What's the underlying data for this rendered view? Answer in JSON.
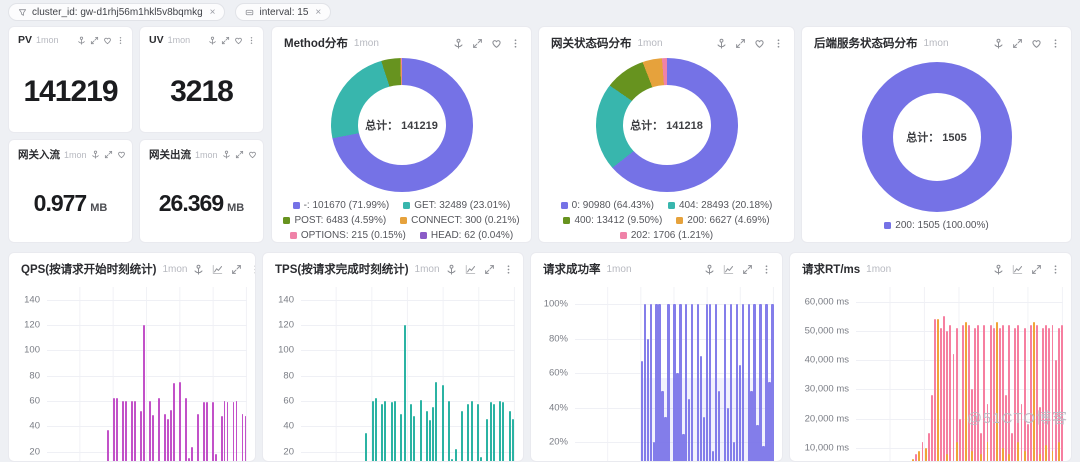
{
  "filters": {
    "cluster_chip": {
      "icon": "filter-icon",
      "label": "cluster_id: gw-d1rhj56m1hkl5v8bqmkg",
      "close": "×"
    },
    "interval_chip": {
      "icon": "field-icon",
      "label": "interval: 15",
      "close": "×"
    }
  },
  "panels": {
    "pv": {
      "title": "PV",
      "range": "1mon",
      "value": "141219",
      "icons": [
        "pin-icon",
        "expand-icon",
        "health-icon",
        "more-icon"
      ]
    },
    "uv": {
      "title": "UV",
      "range": "1mon",
      "value": "3218",
      "icons": [
        "pin-icon",
        "expand-icon",
        "health-icon",
        "more-icon"
      ]
    },
    "inflow": {
      "title": "网关入流",
      "range": "1mon",
      "value": "0.977",
      "unit": "MB",
      "icons": [
        "pin-icon",
        "expand-icon",
        "health-icon",
        "more-icon"
      ]
    },
    "outflow": {
      "title": "网关出流",
      "range": "1mon",
      "value": "26.369",
      "unit": "MB",
      "icons": [
        "pin-icon",
        "expand-icon",
        "health-icon",
        "more-icon"
      ]
    },
    "method": {
      "title": "Method分布",
      "range": "1mon",
      "icons": [
        "pin-icon",
        "expand-icon",
        "health-icon",
        "more-icon"
      ]
    },
    "gw_status": {
      "title": "网关状态码分布",
      "range": "1mon",
      "icons": [
        "pin-icon",
        "expand-icon",
        "health-icon",
        "more-icon"
      ]
    },
    "backend_status": {
      "title": "后端服务状态码分布",
      "range": "1mon",
      "icons": [
        "pin-icon",
        "expand-icon",
        "health-icon",
        "more-icon"
      ]
    },
    "qps": {
      "title": "QPS(按请求开始时刻统计)",
      "range": "1mon",
      "icons": [
        "pin-icon",
        "chart-line-icon",
        "expand-icon",
        "more-icon"
      ]
    },
    "tps": {
      "title": "TPS(按请求完成时刻统计)",
      "range": "1mon",
      "icons": [
        "pin-icon",
        "chart-line-icon",
        "expand-icon",
        "more-icon"
      ]
    },
    "success": {
      "title": "请求成功率",
      "range": "1mon",
      "icons": [
        "pin-icon",
        "chart-line-icon",
        "expand-icon",
        "more-icon"
      ]
    },
    "rt": {
      "title": "请求RT/ms",
      "range": "1mon",
      "icons": [
        "pin-icon",
        "chart-line-icon",
        "expand-icon",
        "more-icon"
      ]
    }
  },
  "watermark": "@51CTO博客",
  "chart_data": [
    {
      "id": "method",
      "type": "pie",
      "title": "Method分布",
      "center": "总计： 141219",
      "total": 141219,
      "slices": [
        {
          "label": "-",
          "value": 101670,
          "pct": "71.99%",
          "color": "#7572e6"
        },
        {
          "label": "GET",
          "value": 32489,
          "pct": "23.01%",
          "color": "#38b6ad"
        },
        {
          "label": "POST",
          "value": 6483,
          "pct": "4.59%",
          "color": "#67931f"
        },
        {
          "label": "CONNECT",
          "value": 300,
          "pct": "0.21%",
          "color": "#e6a23c"
        },
        {
          "label": "OPTIONS",
          "value": 215,
          "pct": "0.15%",
          "color": "#ef82a8"
        },
        {
          "label": "HEAD",
          "value": 62,
          "pct": "0.04%",
          "color": "#8a5bc7"
        }
      ]
    },
    {
      "id": "gw_status",
      "type": "pie",
      "title": "网关状态码分布",
      "center": "总计： 141218",
      "total": 141218,
      "slices": [
        {
          "label": "0",
          "value": 90980,
          "pct": "64.43%",
          "color": "#7572e6"
        },
        {
          "label": "404",
          "value": 28493,
          "pct": "20.18%",
          "color": "#38b6ad"
        },
        {
          "label": "400",
          "value": 13412,
          "pct": "9.50%",
          "color": "#67931f"
        },
        {
          "label": "200",
          "value": 6627,
          "pct": "4.69%",
          "color": "#e6a23c"
        },
        {
          "label": "202",
          "value": 1706,
          "pct": "1.21%",
          "color": "#ef82a8"
        }
      ]
    },
    {
      "id": "backend_status",
      "type": "pie",
      "title": "后端服务状态码分布",
      "center": "总计： 1505",
      "total": 1505,
      "slices": [
        {
          "label": "200",
          "value": 1505,
          "pct": "100.00%",
          "color": "#7572e6"
        }
      ]
    },
    {
      "id": "qps",
      "type": "bar",
      "title": "QPS(按请求开始时刻统计)",
      "color": "#c251c8",
      "ylim": [
        0,
        150
      ],
      "yticks": [
        {
          "v": 140,
          "label": "140"
        },
        {
          "v": 120,
          "label": "120"
        },
        {
          "v": 100,
          "label": "100"
        },
        {
          "v": 80,
          "label": "80"
        },
        {
          "v": 60,
          "label": "60"
        },
        {
          "v": 40,
          "label": "40"
        },
        {
          "v": 20,
          "label": "20"
        }
      ],
      "values": [
        0,
        0,
        0,
        0,
        0,
        0,
        0,
        0,
        0,
        0,
        0,
        0,
        0,
        0,
        0,
        0,
        0,
        0,
        0,
        0,
        37,
        0,
        62,
        62,
        0,
        60,
        60,
        10,
        60,
        60,
        8,
        52,
        120,
        0,
        60,
        49,
        10,
        62,
        0,
        50,
        46,
        53,
        74,
        0,
        75,
        12,
        62,
        15,
        24,
        12,
        50,
        2,
        59,
        59,
        4,
        59,
        18,
        8,
        48,
        60,
        59,
        2,
        59,
        60,
        13,
        50,
        48
      ]
    },
    {
      "id": "tps",
      "type": "bar",
      "title": "TPS(按请求完成时刻统计)",
      "color": "#2bb3a3",
      "ylim": [
        0,
        150
      ],
      "yticks": [
        {
          "v": 140,
          "label": "140"
        },
        {
          "v": 120,
          "label": "120"
        },
        {
          "v": 100,
          "label": "100"
        },
        {
          "v": 80,
          "label": "80"
        },
        {
          "v": 60,
          "label": "60"
        },
        {
          "v": 40,
          "label": "40"
        },
        {
          "v": 20,
          "label": "20"
        }
      ],
      "values": [
        0,
        0,
        0,
        0,
        0,
        0,
        0,
        0,
        0,
        0,
        0,
        0,
        0,
        0,
        0,
        0,
        0,
        0,
        0,
        0,
        35,
        0,
        60,
        62,
        0,
        58,
        60,
        12,
        59,
        60,
        10,
        50,
        120,
        0,
        58,
        48,
        12,
        61,
        0,
        52,
        45,
        55,
        75,
        0,
        73,
        10,
        60,
        14,
        22,
        10,
        52,
        3,
        58,
        60,
        5,
        58,
        16,
        9,
        46,
        59,
        58,
        3,
        60,
        59,
        12,
        52,
        46
      ]
    },
    {
      "id": "success",
      "type": "bar",
      "title": "请求成功率",
      "color": "#7a73e8",
      "ylim": [
        0,
        110
      ],
      "yticks": [
        {
          "v": 100,
          "label": "100%"
        },
        {
          "v": 80,
          "label": "80%"
        },
        {
          "v": 60,
          "label": "60%"
        },
        {
          "v": 40,
          "label": "40%"
        },
        {
          "v": 20,
          "label": "20%"
        }
      ],
      "values": [
        null,
        null,
        null,
        null,
        null,
        null,
        null,
        null,
        null,
        null,
        null,
        null,
        null,
        null,
        null,
        null,
        null,
        null,
        null,
        null,
        null,
        null,
        67,
        100,
        80,
        100,
        20,
        100,
        100,
        50,
        35,
        100,
        0,
        100,
        60,
        100,
        25,
        100,
        45,
        100,
        0,
        100,
        70,
        35,
        100,
        100,
        15,
        100,
        50,
        0,
        100,
        40,
        100,
        20,
        100,
        65,
        100,
        0,
        100,
        50,
        100,
        30,
        100,
        18,
        100,
        55,
        100
      ]
    },
    {
      "id": "rt",
      "type": "bar",
      "title": "请求RT/ms",
      "color": "#f67fa0",
      "color2": "#f0a438",
      "ylim": [
        0,
        65000
      ],
      "yticks": [
        {
          "v": 60000,
          "label": "60,000 ms"
        },
        {
          "v": 50000,
          "label": "50,000 ms"
        },
        {
          "v": 40000,
          "label": "40,000 ms"
        },
        {
          "v": 30000,
          "label": "30,000 ms"
        },
        {
          "v": 20000,
          "label": "20,000 ms"
        },
        {
          "v": 10000,
          "label": "10,000 ms"
        }
      ],
      "values": [
        null,
        null,
        null,
        null,
        null,
        null,
        null,
        null,
        null,
        null,
        null,
        null,
        null,
        null,
        null,
        null,
        null,
        null,
        3000,
        8000,
        5000,
        12000,
        7000,
        15000,
        28000,
        54000,
        52000,
        51000,
        55000,
        50000,
        52000,
        42000,
        51000,
        20000,
        52000,
        51000,
        52000,
        30000,
        51000,
        52000,
        15000,
        52000,
        25000,
        52000,
        51000,
        20000,
        51000,
        52000,
        28000,
        52000,
        15000,
        51000,
        52000,
        25000,
        51000,
        18000,
        52000,
        51000,
        52000,
        24000,
        51000,
        52000,
        51000,
        52000,
        40000,
        51000,
        52000
      ],
      "values2": [
        null,
        null,
        null,
        null,
        null,
        null,
        null,
        null,
        null,
        null,
        null,
        null,
        null,
        null,
        null,
        null,
        null,
        null,
        6000,
        null,
        9000,
        null,
        10000,
        null,
        null,
        null,
        54000,
        null,
        null,
        8000,
        null,
        null,
        12000,
        null,
        null,
        53000,
        null,
        9000,
        null,
        null,
        8000,
        null,
        12000,
        null,
        null,
        53000,
        null,
        10000,
        null,
        8000,
        null,
        null,
        12000,
        null,
        9000,
        null,
        null,
        53000,
        null,
        8000,
        null,
        11000,
        null,
        9000,
        null,
        12000,
        null
      ]
    }
  ]
}
